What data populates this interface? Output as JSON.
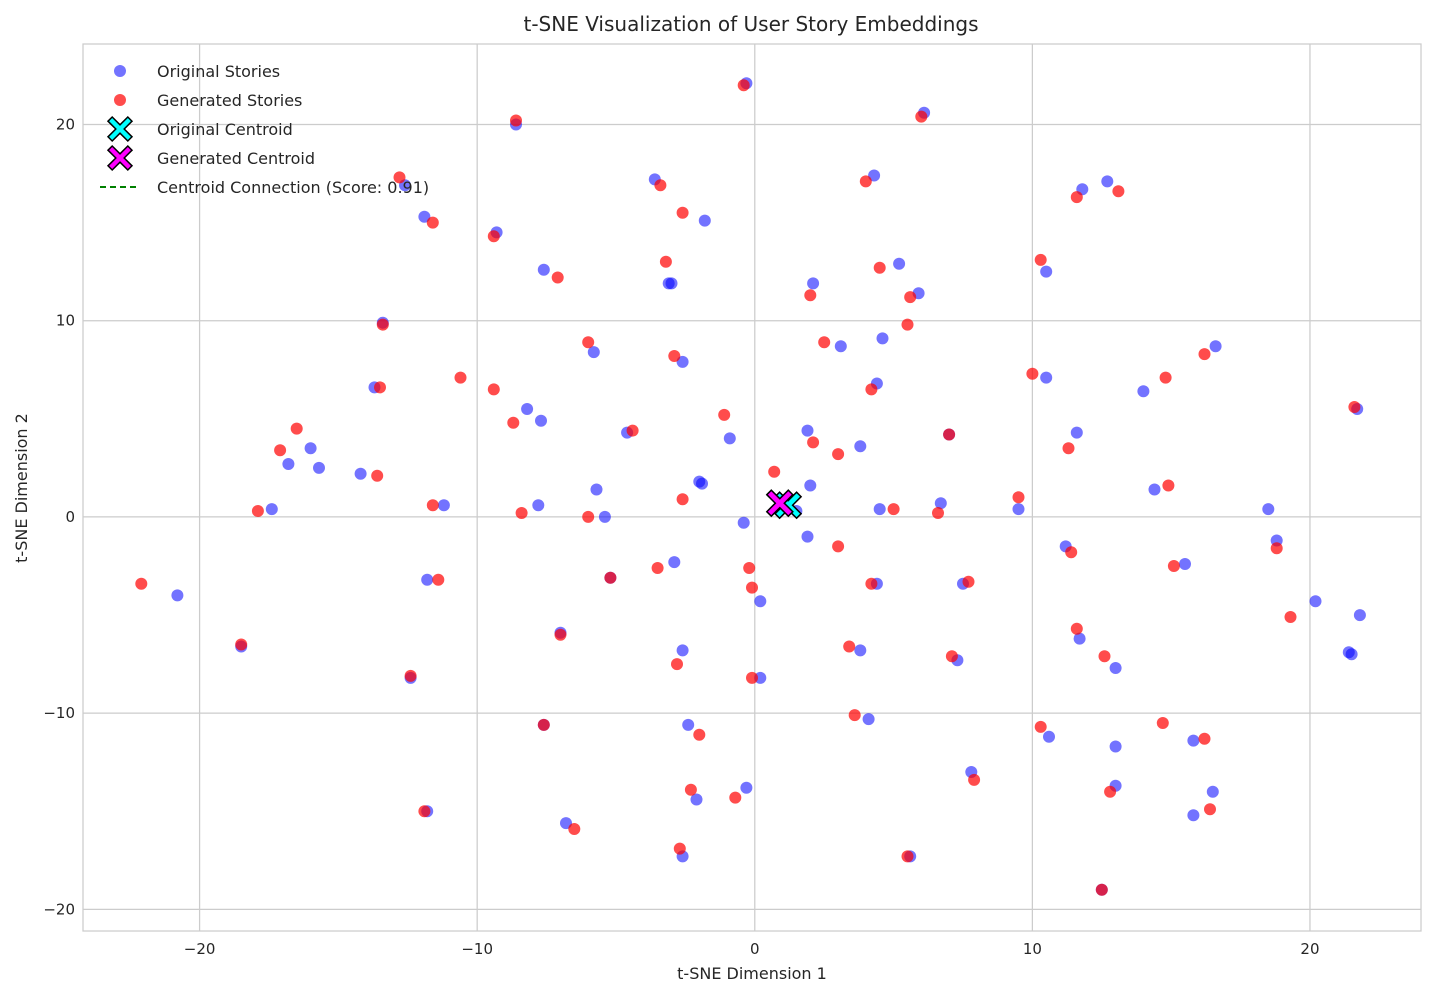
{
  "chart_data": {
    "type": "scatter",
    "title": "t-SNE Visualization of User Story Embeddings",
    "xlabel": "t-SNE Dimension 1",
    "ylabel": "t-SNE Dimension 2",
    "xlim": [
      -24.2,
      24.0
    ],
    "ylim": [
      -21.1,
      24.1
    ],
    "xticks": [
      -20,
      -10,
      0,
      10,
      20
    ],
    "yticks": [
      -20,
      -10,
      0,
      10,
      20
    ],
    "xtick_labels": [
      "−20",
      "−10",
      "0",
      "10",
      "20"
    ],
    "ytick_labels": [
      "−20",
      "−10",
      "0",
      "10",
      "20"
    ],
    "grid": true,
    "legend_position": "top-left",
    "colors": {
      "original": "#0000ff",
      "generated": "#ff0000",
      "original_centroid": "#00ffff",
      "generated_centroid": "#ff00ff",
      "connection": "#008000"
    },
    "legend": [
      {
        "label": "Original Stories",
        "marker": "circle",
        "color": "#0000ff"
      },
      {
        "label": "Generated Stories",
        "marker": "circle",
        "color": "#ff0000"
      },
      {
        "label": "Original Centroid",
        "marker": "x",
        "color": "#00ffff"
      },
      {
        "label": "Generated Centroid",
        "marker": "x",
        "color": "#ff00ff"
      },
      {
        "label": "Centroid Connection (Score: 0.91)",
        "marker": "dashed-line",
        "color": "#008000"
      }
    ],
    "series": [
      {
        "name": "Original Stories",
        "points": [
          [
            -0.3,
            22.1
          ],
          [
            6.1,
            20.6
          ],
          [
            -8.6,
            20.0
          ],
          [
            -12.6,
            16.9
          ],
          [
            -3.6,
            17.2
          ],
          [
            4.3,
            17.4
          ],
          [
            12.7,
            17.1
          ],
          [
            11.8,
            16.7
          ],
          [
            -11.9,
            15.3
          ],
          [
            -9.3,
            14.5
          ],
          [
            -1.8,
            15.1
          ],
          [
            -7.6,
            12.6
          ],
          [
            -3.1,
            11.9
          ],
          [
            -3.0,
            11.9
          ],
          [
            2.1,
            11.9
          ],
          [
            5.2,
            12.9
          ],
          [
            5.9,
            11.4
          ],
          [
            10.5,
            12.5
          ],
          [
            -13.4,
            9.9
          ],
          [
            -5.8,
            8.4
          ],
          [
            -2.6,
            7.9
          ],
          [
            3.1,
            8.7
          ],
          [
            4.6,
            9.1
          ],
          [
            16.6,
            8.7
          ],
          [
            -13.7,
            6.6
          ],
          [
            4.4,
            6.8
          ],
          [
            10.5,
            7.1
          ],
          [
            14.0,
            6.4
          ],
          [
            -8.2,
            5.5
          ],
          [
            -7.7,
            4.9
          ],
          [
            -4.6,
            4.3
          ],
          [
            -0.9,
            4.0
          ],
          [
            1.9,
            4.4
          ],
          [
            3.8,
            3.6
          ],
          [
            11.6,
            4.3
          ],
          [
            21.7,
            5.5
          ],
          [
            -16.0,
            3.5
          ],
          [
            -16.8,
            2.7
          ],
          [
            -15.7,
            2.5
          ],
          [
            -14.2,
            2.2
          ],
          [
            -1.9,
            1.7
          ],
          [
            -2.0,
            1.8
          ],
          [
            2.0,
            1.6
          ],
          [
            7.0,
            4.2
          ],
          [
            14.4,
            1.4
          ],
          [
            -17.4,
            0.4
          ],
          [
            -11.2,
            0.6
          ],
          [
            -7.8,
            0.6
          ],
          [
            -5.7,
            1.4
          ],
          [
            -5.4,
            0.0
          ],
          [
            -0.4,
            -0.3
          ],
          [
            1.5,
            0.3
          ],
          [
            4.5,
            0.4
          ],
          [
            6.7,
            0.7
          ],
          [
            9.5,
            0.4
          ],
          [
            18.5,
            0.4
          ],
          [
            1.9,
            -1.0
          ],
          [
            11.2,
            -1.5
          ],
          [
            18.8,
            -1.2
          ],
          [
            -20.8,
            -4.0
          ],
          [
            -11.8,
            -3.2
          ],
          [
            -5.2,
            -3.1
          ],
          [
            -2.9,
            -2.3
          ],
          [
            0.2,
            -4.3
          ],
          [
            4.4,
            -3.4
          ],
          [
            7.5,
            -3.4
          ],
          [
            15.5,
            -2.4
          ],
          [
            20.2,
            -4.3
          ],
          [
            21.8,
            -5.0
          ],
          [
            -18.5,
            -6.6
          ],
          [
            -7.0,
            -5.9
          ],
          [
            -2.6,
            -6.8
          ],
          [
            3.8,
            -6.8
          ],
          [
            7.3,
            -7.3
          ],
          [
            11.7,
            -6.2
          ],
          [
            13.0,
            -7.7
          ],
          [
            21.4,
            -6.9
          ],
          [
            21.5,
            -7.0
          ],
          [
            -12.4,
            -8.2
          ],
          [
            0.2,
            -8.2
          ],
          [
            -7.6,
            -10.6
          ],
          [
            -2.4,
            -10.6
          ],
          [
            4.1,
            -10.3
          ],
          [
            10.6,
            -11.2
          ],
          [
            13.0,
            -11.7
          ],
          [
            15.8,
            -11.4
          ],
          [
            -0.3,
            -13.8
          ],
          [
            -2.1,
            -14.4
          ],
          [
            7.8,
            -13.0
          ],
          [
            13.0,
            -13.7
          ],
          [
            16.5,
            -14.0
          ],
          [
            -6.8,
            -15.6
          ],
          [
            -11.8,
            -15.0
          ],
          [
            15.8,
            -15.2
          ],
          [
            -2.6,
            -17.3
          ],
          [
            5.6,
            -17.3
          ],
          [
            12.5,
            -19.0
          ]
        ]
      },
      {
        "name": "Generated Stories",
        "points": [
          [
            -0.4,
            22.0
          ],
          [
            6.0,
            20.4
          ],
          [
            -8.6,
            20.2
          ],
          [
            -12.8,
            17.3
          ],
          [
            -3.4,
            16.9
          ],
          [
            4.0,
            17.1
          ],
          [
            13.1,
            16.6
          ],
          [
            11.6,
            16.3
          ],
          [
            -11.6,
            15.0
          ],
          [
            -9.4,
            14.3
          ],
          [
            -2.6,
            15.5
          ],
          [
            -7.1,
            12.2
          ],
          [
            -3.2,
            13.0
          ],
          [
            2.0,
            11.3
          ],
          [
            4.5,
            12.7
          ],
          [
            5.6,
            11.2
          ],
          [
            10.3,
            13.1
          ],
          [
            5.5,
            9.8
          ],
          [
            -13.4,
            9.8
          ],
          [
            -6.0,
            8.9
          ],
          [
            -2.9,
            8.2
          ],
          [
            2.5,
            8.9
          ],
          [
            16.2,
            8.3
          ],
          [
            -13.5,
            6.6
          ],
          [
            -10.6,
            7.1
          ],
          [
            -9.4,
            6.5
          ],
          [
            4.2,
            6.5
          ],
          [
            10.0,
            7.3
          ],
          [
            14.8,
            7.1
          ],
          [
            -8.7,
            4.8
          ],
          [
            -4.4,
            4.4
          ],
          [
            -1.1,
            5.2
          ],
          [
            2.1,
            3.8
          ],
          [
            3.0,
            3.2
          ],
          [
            7.0,
            4.2
          ],
          [
            11.3,
            3.5
          ],
          [
            21.6,
            5.6
          ],
          [
            -16.5,
            4.5
          ],
          [
            -17.1,
            3.4
          ],
          [
            -13.6,
            2.1
          ],
          [
            0.7,
            2.3
          ],
          [
            -17.9,
            0.3
          ],
          [
            -11.6,
            0.6
          ],
          [
            -8.4,
            0.2
          ],
          [
            -6.0,
            0.0
          ],
          [
            -2.6,
            0.9
          ],
          [
            5.0,
            0.4
          ],
          [
            6.6,
            0.2
          ],
          [
            9.5,
            1.0
          ],
          [
            14.9,
            1.6
          ],
          [
            11.4,
            -1.8
          ],
          [
            18.8,
            -1.6
          ],
          [
            3.0,
            -1.5
          ],
          [
            -22.1,
            -3.4
          ],
          [
            -11.4,
            -3.2
          ],
          [
            -5.2,
            -3.1
          ],
          [
            -3.5,
            -2.6
          ],
          [
            -0.2,
            -2.6
          ],
          [
            -0.1,
            -3.6
          ],
          [
            4.2,
            -3.4
          ],
          [
            7.7,
            -3.3
          ],
          [
            15.1,
            -2.5
          ],
          [
            19.3,
            -5.1
          ],
          [
            -18.5,
            -6.5
          ],
          [
            -7.0,
            -6.0
          ],
          [
            -2.8,
            -7.5
          ],
          [
            3.4,
            -6.6
          ],
          [
            7.1,
            -7.1
          ],
          [
            11.6,
            -5.7
          ],
          [
            12.6,
            -7.1
          ],
          [
            -12.4,
            -8.1
          ],
          [
            -0.1,
            -8.2
          ],
          [
            -7.6,
            -10.6
          ],
          [
            -2.0,
            -11.1
          ],
          [
            3.6,
            -10.1
          ],
          [
            10.3,
            -10.7
          ],
          [
            14.7,
            -10.5
          ],
          [
            16.2,
            -11.3
          ],
          [
            -2.3,
            -13.9
          ],
          [
            -0.7,
            -14.3
          ],
          [
            7.9,
            -13.4
          ],
          [
            12.8,
            -14.0
          ],
          [
            -6.5,
            -15.9
          ],
          [
            -11.9,
            -15.0
          ],
          [
            16.4,
            -14.9
          ],
          [
            -2.7,
            -16.9
          ],
          [
            5.5,
            -17.3
          ],
          [
            12.5,
            -19.0
          ]
        ]
      }
    ],
    "centroids": {
      "original": [
        1.2,
        0.6
      ],
      "generated": [
        0.9,
        0.7
      ],
      "connection_score": 0.91
    }
  }
}
